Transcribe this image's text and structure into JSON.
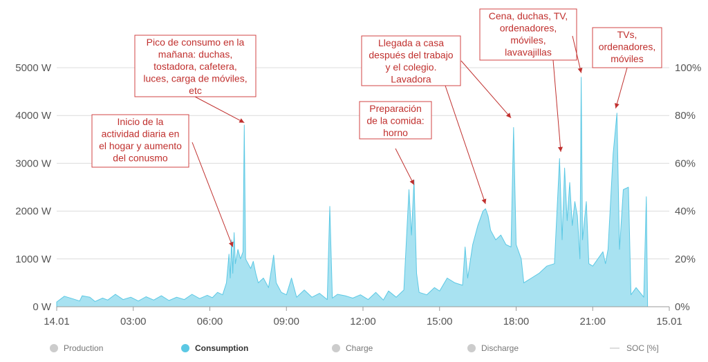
{
  "chart_data": {
    "type": "area",
    "x_ticks": [
      "14.01",
      "03:00",
      "06:00",
      "09:00",
      "12:00",
      "15:00",
      "18:00",
      "21:00",
      "15.01"
    ],
    "y_left_ticks": [
      "0 W",
      "1000 W",
      "2000 W",
      "3000 W",
      "4000 W",
      "5000 W"
    ],
    "y_right_ticks": [
      "0%",
      "20%",
      "40%",
      "60%",
      "80%",
      "100%"
    ],
    "ylim": [
      0,
      5000
    ],
    "y2lim": [
      0,
      100
    ],
    "xlim_hours": [
      0,
      24
    ],
    "grid": true,
    "series": [
      {
        "name": "Consumption",
        "color": "#5bc8e4",
        "fill": "#a8e2f1",
        "points": [
          [
            0.0,
            100
          ],
          [
            0.3,
            220
          ],
          [
            0.6,
            170
          ],
          [
            0.9,
            120
          ],
          [
            1.0,
            230
          ],
          [
            1.3,
            200
          ],
          [
            1.5,
            110
          ],
          [
            1.8,
            180
          ],
          [
            2.0,
            140
          ],
          [
            2.3,
            260
          ],
          [
            2.6,
            150
          ],
          [
            2.9,
            200
          ],
          [
            3.2,
            120
          ],
          [
            3.5,
            210
          ],
          [
            3.8,
            140
          ],
          [
            4.1,
            230
          ],
          [
            4.4,
            130
          ],
          [
            4.7,
            200
          ],
          [
            5.0,
            150
          ],
          [
            5.3,
            260
          ],
          [
            5.6,
            170
          ],
          [
            5.9,
            240
          ],
          [
            6.1,
            190
          ],
          [
            6.3,
            300
          ],
          [
            6.5,
            250
          ],
          [
            6.65,
            500
          ],
          [
            6.75,
            1100
          ],
          [
            6.8,
            600
          ],
          [
            6.85,
            1400
          ],
          [
            6.9,
            700
          ],
          [
            6.95,
            1550
          ],
          [
            7.0,
            900
          ],
          [
            7.1,
            1200
          ],
          [
            7.2,
            1000
          ],
          [
            7.3,
            1150
          ],
          [
            7.35,
            3800
          ],
          [
            7.4,
            1000
          ],
          [
            7.5,
            900
          ],
          [
            7.6,
            800
          ],
          [
            7.7,
            950
          ],
          [
            7.8,
            700
          ],
          [
            7.9,
            500
          ],
          [
            8.1,
            600
          ],
          [
            8.3,
            400
          ],
          [
            8.5,
            1080
          ],
          [
            8.6,
            500
          ],
          [
            8.8,
            300
          ],
          [
            9.0,
            250
          ],
          [
            9.2,
            600
          ],
          [
            9.4,
            200
          ],
          [
            9.7,
            350
          ],
          [
            10.0,
            200
          ],
          [
            10.3,
            280
          ],
          [
            10.6,
            150
          ],
          [
            10.7,
            2100
          ],
          [
            10.8,
            180
          ],
          [
            11.0,
            260
          ],
          [
            11.3,
            230
          ],
          [
            11.6,
            180
          ],
          [
            11.9,
            250
          ],
          [
            12.2,
            150
          ],
          [
            12.5,
            300
          ],
          [
            12.8,
            140
          ],
          [
            13.0,
            330
          ],
          [
            13.3,
            200
          ],
          [
            13.6,
            350
          ],
          [
            13.8,
            2450
          ],
          [
            13.9,
            1500
          ],
          [
            14.0,
            2650
          ],
          [
            14.1,
            700
          ],
          [
            14.2,
            300
          ],
          [
            14.5,
            250
          ],
          [
            14.8,
            400
          ],
          [
            15.0,
            330
          ],
          [
            15.3,
            600
          ],
          [
            15.6,
            500
          ],
          [
            15.9,
            450
          ],
          [
            16.0,
            1250
          ],
          [
            16.1,
            600
          ],
          [
            16.3,
            1300
          ],
          [
            16.5,
            1700
          ],
          [
            16.7,
            2000
          ],
          [
            16.8,
            2050
          ],
          [
            16.9,
            1900
          ],
          [
            17.0,
            1600
          ],
          [
            17.2,
            1400
          ],
          [
            17.4,
            1500
          ],
          [
            17.6,
            1300
          ],
          [
            17.8,
            1250
          ],
          [
            17.9,
            3750
          ],
          [
            18.0,
            1300
          ],
          [
            18.2,
            1000
          ],
          [
            18.3,
            500
          ],
          [
            18.6,
            600
          ],
          [
            18.9,
            700
          ],
          [
            19.2,
            850
          ],
          [
            19.5,
            900
          ],
          [
            19.7,
            3100
          ],
          [
            19.8,
            1400
          ],
          [
            19.9,
            2900
          ],
          [
            20.0,
            1800
          ],
          [
            20.1,
            2600
          ],
          [
            20.2,
            1700
          ],
          [
            20.3,
            2200
          ],
          [
            20.4,
            1900
          ],
          [
            20.5,
            1000
          ],
          [
            20.55,
            4800
          ],
          [
            20.6,
            1400
          ],
          [
            20.75,
            2200
          ],
          [
            20.85,
            900
          ],
          [
            21.0,
            850
          ],
          [
            21.2,
            1000
          ],
          [
            21.4,
            1150
          ],
          [
            21.5,
            900
          ],
          [
            21.6,
            1200
          ],
          [
            21.8,
            3200
          ],
          [
            21.95,
            4050
          ],
          [
            22.05,
            1200
          ],
          [
            22.2,
            2450
          ],
          [
            22.4,
            2500
          ],
          [
            22.5,
            250
          ],
          [
            22.7,
            400
          ],
          [
            23.0,
            200
          ],
          [
            23.1,
            2300
          ],
          [
            23.15,
            60
          ]
        ]
      },
      {
        "name": "Production",
        "points": []
      },
      {
        "name": "Charge",
        "points": []
      },
      {
        "name": "Discharge",
        "points": []
      },
      {
        "name": "SOC [%]",
        "points": []
      }
    ],
    "annotations": [
      {
        "lines": [
          "Inicio de la",
          "actividad diaria en",
          "el hogar y aumento",
          "del conusmo"
        ],
        "point": [
          6.9,
          1250
        ]
      },
      {
        "lines": [
          "Pico de consumo en la",
          "mañana: duchas,",
          "tostadora, cafetera,",
          "luces, carga de móviles,",
          "etc"
        ],
        "point": [
          7.35,
          3850
        ]
      },
      {
        "lines": [
          "Preparación",
          "de la comida:",
          "horno"
        ],
        "point": [
          14.0,
          2550
        ]
      },
      {
        "lines": [
          "Llegada a casa",
          "después del trabajo",
          "y el colegio.",
          "Lavadora"
        ],
        "point": [
          16.8,
          2150
        ]
      },
      {
        "lines": [],
        "point": [
          17.8,
          3950
        ]
      },
      {
        "lines": [
          "Cena, duchas, TV,",
          "ordenadores,",
          "móviles,",
          "lavavajillas"
        ],
        "point": [
          19.75,
          3240
        ]
      },
      {
        "lines": [],
        "point": [
          20.55,
          4890
        ]
      },
      {
        "lines": [
          "TVs,",
          "ordenadores,",
          "móviles"
        ],
        "point": [
          21.9,
          4150
        ]
      }
    ]
  },
  "legend": {
    "production": "Production",
    "consumption": "Consumption",
    "charge": "Charge",
    "discharge": "Discharge",
    "soc": "SOC [%]"
  },
  "colors": {
    "consumption": "#5bc8e4",
    "inactive": "#cccccc",
    "annotation": "#c0302e"
  }
}
